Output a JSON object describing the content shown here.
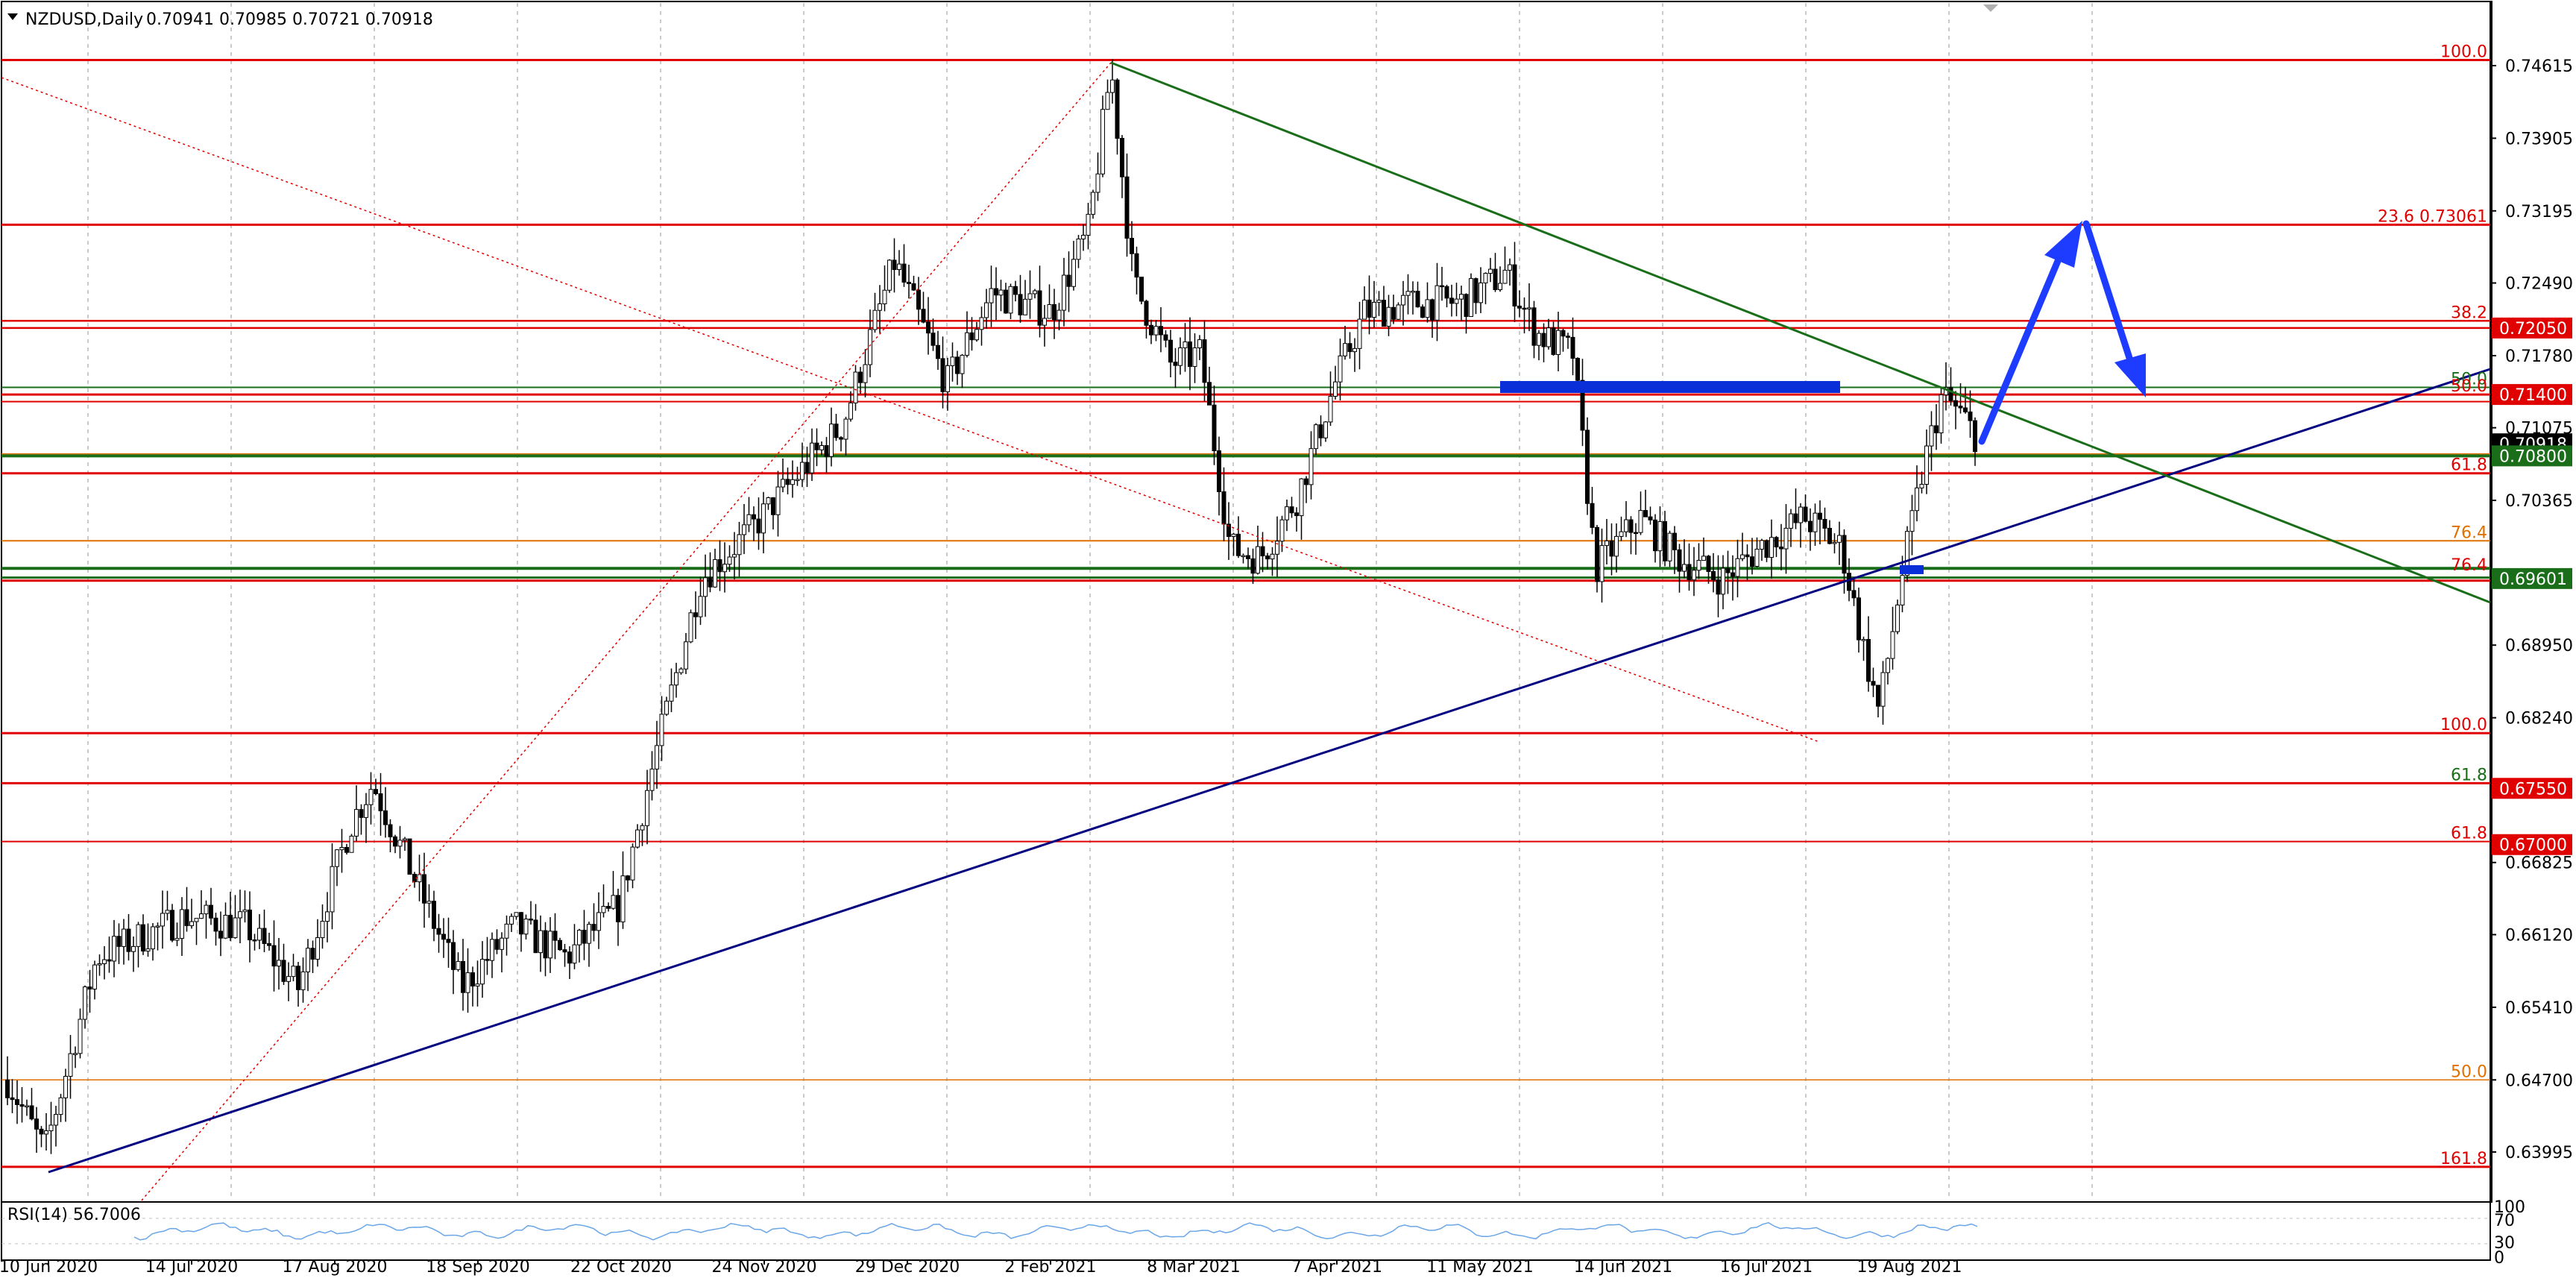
{
  "chart": {
    "symbol_title": "NZDUSD,Daily",
    "ohlc": "0.70941 0.70985 0.70721 0.70918",
    "rsi_label": "RSI(14) 56.7006"
  },
  "price_axis": {
    "ticks": [
      "0.74615",
      "0.73905",
      "0.73195",
      "0.72490",
      "0.71780",
      "0.71075",
      "0.70365",
      "0.68950",
      "0.68240",
      "0.66825",
      "0.66120",
      "0.65410",
      "0.64700",
      "0.63995"
    ],
    "tags": [
      {
        "text": "0.72050",
        "color": "#e00000",
        "price": 0.7205
      },
      {
        "text": "0.71400",
        "color": "#e00000",
        "price": 0.714
      },
      {
        "text": "0.70918",
        "color": "#000000",
        "price": 0.70918
      },
      {
        "text": "0.70800",
        "color": "#1a6e1a",
        "price": 0.708
      },
      {
        "text": "0.69601",
        "color": "#1a6e1a",
        "price": 0.69601
      },
      {
        "text": "0.67550",
        "color": "#e00000",
        "price": 0.6755
      },
      {
        "text": "0.67000",
        "color": "#e00000",
        "price": 0.67
      }
    ]
  },
  "rsi_axis": {
    "ticks": [
      "100",
      "70",
      "30",
      "0"
    ]
  },
  "date_axis": {
    "labels": [
      "10 Jun 2020",
      "14 Jul 2020",
      "17 Aug 2020",
      "18 Sep 2020",
      "22 Oct 2020",
      "24 Nov 2020",
      "29 Dec 2020",
      "2 Feb 2021",
      "8 Mar 2021",
      "7 Apr 2021",
      "11 May 2021",
      "14 Jun 2021",
      "16 Jul 2021",
      "19 Aug 2021"
    ]
  },
  "fib_levels": [
    {
      "text": "100.0",
      "color": "#e00000",
      "price": 0.7467
    },
    {
      "text": "23.6 0.73061",
      "color": "#e00000",
      "price": 0.7306
    },
    {
      "text": "38.2",
      "color": "#e00000",
      "price": 0.7212
    },
    {
      "text": "50.0",
      "color": "#1a6e1a",
      "price": 0.7147
    },
    {
      "text": "50.0",
      "color": "#e00000",
      "price": 0.714
    },
    {
      "text": "61.8",
      "color": "#e00000",
      "price": 0.7063
    },
    {
      "text": "76.4",
      "color": "#e07000",
      "price": 0.6997
    },
    {
      "text": "76.4",
      "color": "#e00000",
      "price": 0.6965
    },
    {
      "text": "100.0",
      "color": "#e00000",
      "price": 0.6809
    },
    {
      "text": "61.8",
      "color": "#1a6e1a",
      "price": 0.676
    },
    {
      "text": "61.8",
      "color": "#e00000",
      "price": 0.6703
    },
    {
      "text": "50.0",
      "color": "#e07000",
      "price": 0.647
    },
    {
      "text": "161.8",
      "color": "#e00000",
      "price": 0.6385
    }
  ],
  "colors": {
    "resistance": "#e00000",
    "support": "#1a6e1a",
    "trendline_up": "#000080",
    "trendline_down": "#1a6e1a",
    "projection_arrow": "#1e3cff",
    "zone": "#0a2fd8",
    "rsi_line": "#6aa6e8"
  }
}
